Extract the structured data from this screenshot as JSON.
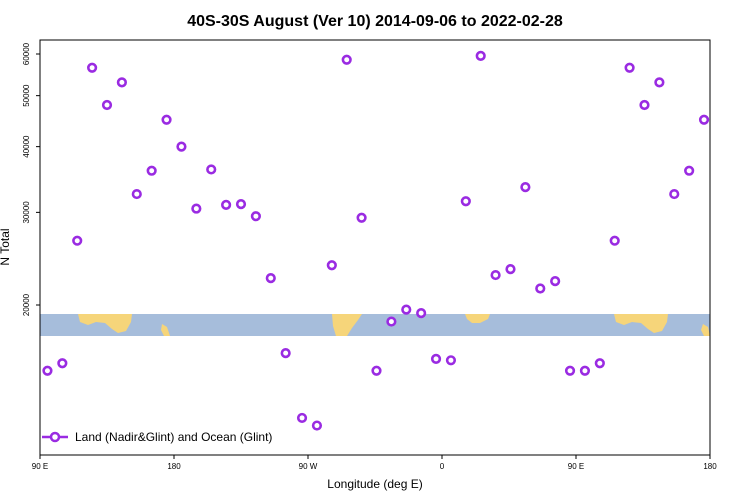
{
  "chart_data": {
    "type": "scatter",
    "title": "40S-30S August (Ver 10)   2014-09-06 to 2022-02-28",
    "xlabel": "Longitude (deg E)",
    "ylabel": "N Total",
    "xlim": [
      90,
      540
    ],
    "ylog": true,
    "x_ticks": [
      {
        "value": 90,
        "label": "90 E"
      },
      {
        "value": 180,
        "label": "180"
      },
      {
        "value": 270,
        "label": "90 W"
      },
      {
        "value": 360,
        "label": "0"
      },
      {
        "value": 450,
        "label": "90 E"
      },
      {
        "value": 540,
        "label": "180"
      }
    ],
    "y_ticks": [
      {
        "value": 20000,
        "label": "20000"
      },
      {
        "value": 30000,
        "label": "30000"
      },
      {
        "value": 40000,
        "label": "40000"
      },
      {
        "value": 50000,
        "label": "50000"
      },
      {
        "value": 60000,
        "label": "60000"
      }
    ],
    "marker_color": "#9a2be2",
    "map_colors": {
      "ocean": "#a6bddb",
      "land": "#f6d57a"
    },
    "legend": {
      "position": "bottom-left",
      "label": "Land (Nadir&Glint) and Ocean (Glint)"
    },
    "series": [
      {
        "name": "Land (Nadir&Glint) and Ocean (Glint)",
        "x": [
          95,
          105,
          115,
          125,
          135,
          145,
          155,
          165,
          175,
          185,
          195,
          205,
          215,
          225,
          235,
          245,
          255,
          266,
          276,
          286,
          296,
          306,
          316,
          326,
          336,
          346,
          356,
          366,
          376,
          386,
          396,
          406,
          416,
          426,
          436,
          446,
          456,
          466,
          476,
          486,
          496,
          506,
          516,
          526,
          536
        ],
        "y": [
          15000,
          15500,
          26500,
          56500,
          48000,
          53000,
          32500,
          36000,
          45000,
          40000,
          30500,
          36200,
          31000,
          31100,
          29500,
          22500,
          16200,
          12200,
          11800,
          23800,
          58500,
          29300,
          15000,
          18600,
          19600,
          19300,
          15800,
          15700,
          31500,
          59500,
          22800,
          23400,
          33500,
          21500,
          22200,
          15000,
          15000,
          15500,
          26500,
          56500,
          48000,
          53000,
          32500,
          36000,
          45000
        ]
      }
    ]
  }
}
